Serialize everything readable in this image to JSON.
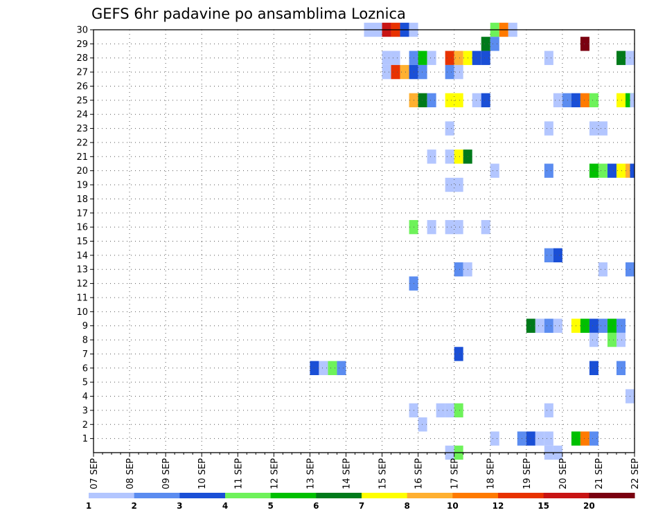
{
  "chart_data": {
    "type": "heatmap",
    "title": "GEFS 6hr padavine po ansamblima Loznica",
    "y_members": [
      1,
      2,
      3,
      4,
      5,
      6,
      7,
      8,
      9,
      10,
      11,
      12,
      13,
      14,
      15,
      16,
      17,
      18,
      19,
      20,
      21,
      22,
      23,
      24,
      25,
      26,
      27,
      28,
      29,
      30
    ],
    "x_time": {
      "start": "2024-09-07 00:00",
      "end": "2024-09-22 00:00",
      "step_hours": 6
    },
    "x_tick_labels": [
      "07 SEP",
      "08 SEP",
      "09 SEP",
      "10 SEP",
      "11 SEP",
      "12 SEP",
      "13 SEP",
      "14 SEP",
      "15 SEP",
      "16 SEP",
      "17 SEP",
      "18 SEP",
      "19 SEP",
      "20 SEP",
      "21 SEP",
      "22 SEP"
    ],
    "grid": true,
    "colorbar": {
      "position": "bottom",
      "tick_labels": [
        "1",
        "2",
        "3",
        "4",
        "5",
        "6",
        "7",
        "8",
        "10",
        "12",
        "15",
        "20"
      ],
      "colors": [
        "#b3c6ff",
        "#5b8cf0",
        "#1a4fd6",
        "#6ef25a",
        "#00c000",
        "#007a1a",
        "#ffff00",
        "#ffb030",
        "#ff7a00",
        "#e83200",
        "#c81414",
        "#7a0010"
      ]
    },
    "legend_unit": "",
    "cells": [
      {
        "m": 30,
        "t": "09-14 12",
        "c": 0
      },
      {
        "m": 30,
        "t": "09-14 18",
        "c": 0
      },
      {
        "m": 30,
        "t": "09-15 00",
        "c": 10
      },
      {
        "m": 30,
        "t": "09-15 06",
        "c": 9
      },
      {
        "m": 30,
        "t": "09-15 12",
        "c": 2
      },
      {
        "m": 30,
        "t": "09-15 18",
        "c": 0
      },
      {
        "m": 30,
        "t": "09-18 00",
        "c": 3
      },
      {
        "m": 30,
        "t": "09-18 06",
        "c": 8
      },
      {
        "m": 30,
        "t": "09-18 12",
        "c": 0
      },
      {
        "m": 29,
        "t": "09-17 18",
        "c": 5
      },
      {
        "m": 29,
        "t": "09-18 00",
        "c": 1
      },
      {
        "m": 29,
        "t": "09-20 12",
        "c": 11
      },
      {
        "m": 28,
        "t": "09-15 00",
        "c": 0
      },
      {
        "m": 28,
        "t": "09-15 06",
        "c": 0
      },
      {
        "m": 28,
        "t": "09-15 18",
        "c": 1
      },
      {
        "m": 28,
        "t": "09-16 00",
        "c": 4
      },
      {
        "m": 28,
        "t": "09-16 06",
        "c": 0
      },
      {
        "m": 28,
        "t": "09-16 18",
        "c": 9
      },
      {
        "m": 28,
        "t": "09-17 00",
        "c": 7
      },
      {
        "m": 28,
        "t": "09-17 06",
        "c": 6
      },
      {
        "m": 28,
        "t": "09-17 12",
        "c": 2
      },
      {
        "m": 28,
        "t": "09-17 18",
        "c": 2
      },
      {
        "m": 28,
        "t": "09-19 12",
        "c": 0
      },
      {
        "m": 28,
        "t": "09-21 12",
        "c": 5
      },
      {
        "m": 28,
        "t": "09-21 18",
        "c": 0
      },
      {
        "m": 27,
        "t": "09-15 00",
        "c": 0
      },
      {
        "m": 27,
        "t": "09-15 06",
        "c": 9
      },
      {
        "m": 27,
        "t": "09-15 12",
        "c": 7
      },
      {
        "m": 27,
        "t": "09-15 18",
        "c": 2
      },
      {
        "m": 27,
        "t": "09-16 00",
        "c": 1
      },
      {
        "m": 27,
        "t": "09-16 18",
        "c": 1
      },
      {
        "m": 27,
        "t": "09-17 00",
        "c": 0
      },
      {
        "m": 25,
        "t": "09-15 18",
        "c": 7
      },
      {
        "m": 25,
        "t": "09-16 00",
        "c": 5
      },
      {
        "m": 25,
        "t": "09-16 06",
        "c": 1
      },
      {
        "m": 25,
        "t": "09-16 18",
        "c": 6
      },
      {
        "m": 25,
        "t": "09-17 00",
        "c": 6
      },
      {
        "m": 25,
        "t": "09-17 12",
        "c": 0
      },
      {
        "m": 25,
        "t": "09-17 18",
        "c": 2
      },
      {
        "m": 25,
        "t": "09-19 18",
        "c": 0
      },
      {
        "m": 25,
        "t": "09-20 00",
        "c": 1
      },
      {
        "m": 25,
        "t": "09-20 06",
        "c": 2
      },
      {
        "m": 25,
        "t": "09-20 12",
        "c": 8
      },
      {
        "m": 25,
        "t": "09-20 18",
        "c": 3
      },
      {
        "m": 25,
        "t": "09-21 12",
        "c": 6
      },
      {
        "m": 25,
        "t": "09-21 18",
        "c": 4
      },
      {
        "m": 25,
        "t": "09-21 21",
        "c": 0
      },
      {
        "m": 23,
        "t": "09-16 18",
        "c": 0
      },
      {
        "m": 23,
        "t": "09-19 12",
        "c": 0
      },
      {
        "m": 23,
        "t": "09-20 18",
        "c": 0
      },
      {
        "m": 23,
        "t": "09-21 00",
        "c": 0
      },
      {
        "m": 21,
        "t": "09-16 06",
        "c": 0
      },
      {
        "m": 21,
        "t": "09-16 18",
        "c": 0
      },
      {
        "m": 21,
        "t": "09-17 00",
        "c": 6
      },
      {
        "m": 21,
        "t": "09-17 06",
        "c": 5
      },
      {
        "m": 20,
        "t": "09-18 00",
        "c": 0
      },
      {
        "m": 20,
        "t": "09-19 12",
        "c": 1
      },
      {
        "m": 20,
        "t": "09-20 18",
        "c": 4
      },
      {
        "m": 20,
        "t": "09-21 00",
        "c": 3
      },
      {
        "m": 20,
        "t": "09-21 06",
        "c": 2
      },
      {
        "m": 20,
        "t": "09-21 12",
        "c": 6
      },
      {
        "m": 20,
        "t": "09-21 18",
        "c": 7
      },
      {
        "m": 20,
        "t": "09-21 21",
        "c": 2
      },
      {
        "m": 19,
        "t": "09-16 18",
        "c": 0
      },
      {
        "m": 19,
        "t": "09-17 00",
        "c": 0
      },
      {
        "m": 16,
        "t": "09-15 18",
        "c": 3
      },
      {
        "m": 16,
        "t": "09-16 06",
        "c": 0
      },
      {
        "m": 16,
        "t": "09-16 18",
        "c": 0
      },
      {
        "m": 16,
        "t": "09-17 00",
        "c": 0
      },
      {
        "m": 16,
        "t": "09-17 18",
        "c": 0
      },
      {
        "m": 14,
        "t": "09-19 12",
        "c": 1
      },
      {
        "m": 14,
        "t": "09-19 18",
        "c": 2
      },
      {
        "m": 13,
        "t": "09-17 00",
        "c": 1
      },
      {
        "m": 13,
        "t": "09-17 06",
        "c": 0
      },
      {
        "m": 13,
        "t": "09-21 00",
        "c": 0
      },
      {
        "m": 13,
        "t": "09-21 18",
        "c": 1
      },
      {
        "m": 12,
        "t": "09-15 18",
        "c": 1
      },
      {
        "m": 9,
        "t": "09-19 00",
        "c": 5
      },
      {
        "m": 9,
        "t": "09-19 06",
        "c": 0
      },
      {
        "m": 9,
        "t": "09-19 12",
        "c": 1
      },
      {
        "m": 9,
        "t": "09-19 18",
        "c": 0
      },
      {
        "m": 9,
        "t": "09-20 06",
        "c": 6
      },
      {
        "m": 9,
        "t": "09-20 12",
        "c": 4
      },
      {
        "m": 9,
        "t": "09-20 18",
        "c": 2
      },
      {
        "m": 9,
        "t": "09-21 00",
        "c": 1
      },
      {
        "m": 9,
        "t": "09-21 06",
        "c": 4
      },
      {
        "m": 9,
        "t": "09-21 12",
        "c": 1
      },
      {
        "m": 8,
        "t": "09-20 18",
        "c": 0
      },
      {
        "m": 8,
        "t": "09-21 06",
        "c": 3
      },
      {
        "m": 8,
        "t": "09-21 12",
        "c": 0
      },
      {
        "m": 7,
        "t": "09-17 00",
        "c": 2
      },
      {
        "m": 6,
        "t": "09-13 00",
        "c": 2
      },
      {
        "m": 6,
        "t": "09-13 06",
        "c": 0
      },
      {
        "m": 6,
        "t": "09-13 12",
        "c": 3
      },
      {
        "m": 6,
        "t": "09-13 18",
        "c": 1
      },
      {
        "m": 6,
        "t": "09-20 18",
        "c": 2
      },
      {
        "m": 6,
        "t": "09-21 12",
        "c": 1
      },
      {
        "m": 4,
        "t": "09-21 18",
        "c": 0
      },
      {
        "m": 3,
        "t": "09-15 18",
        "c": 0
      },
      {
        "m": 3,
        "t": "09-16 12",
        "c": 0
      },
      {
        "m": 3,
        "t": "09-16 18",
        "c": 0
      },
      {
        "m": 3,
        "t": "09-17 00",
        "c": 3
      },
      {
        "m": 3,
        "t": "09-19 12",
        "c": 0
      },
      {
        "m": 2,
        "t": "09-16 00",
        "c": 0
      },
      {
        "m": 1,
        "t": "09-18 00",
        "c": 0
      },
      {
        "m": 1,
        "t": "09-18 18",
        "c": 1
      },
      {
        "m": 1,
        "t": "09-19 00",
        "c": 2
      },
      {
        "m": 1,
        "t": "09-19 06",
        "c": 0
      },
      {
        "m": 1,
        "t": "09-19 12",
        "c": 0
      },
      {
        "m": 1,
        "t": "09-20 06",
        "c": 4
      },
      {
        "m": 1,
        "t": "09-20 12",
        "c": 8
      },
      {
        "m": 1,
        "t": "09-20 18",
        "c": 1
      },
      {
        "m": 0,
        "t": "09-16 18",
        "c": 0
      },
      {
        "m": 0,
        "t": "09-17 00",
        "c": 3
      },
      {
        "m": 0,
        "t": "09-19 12",
        "c": 0
      },
      {
        "m": 0,
        "t": "09-19 18",
        "c": 0
      }
    ]
  }
}
